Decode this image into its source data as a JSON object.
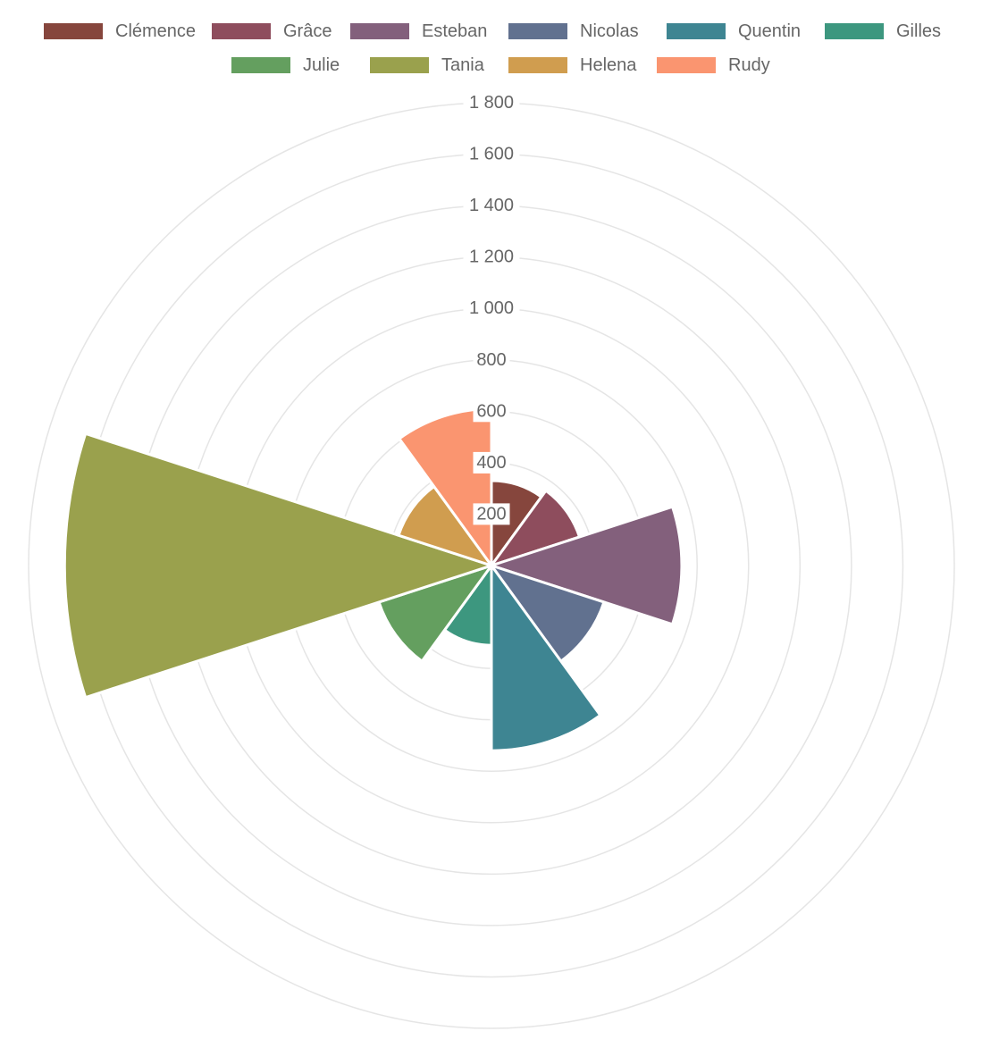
{
  "chart_data": {
    "type": "polarArea",
    "title": "",
    "categories": [
      "Clémence",
      "Grâce",
      "Esteban",
      "Nicolas",
      "Quentin",
      "Gilles",
      "Julie",
      "Tania",
      "Helena",
      "Rudy"
    ],
    "values": [
      330,
      360,
      740,
      460,
      720,
      310,
      460,
      1660,
      380,
      610
    ],
    "colors": [
      "#86463d",
      "#8e4d5d",
      "#83607c",
      "#61718f",
      "#3e8592",
      "#3d977f",
      "#649f5f",
      "#9aa14d",
      "#d09d4f",
      "#fa9570"
    ],
    "rlim": [
      0,
      1800
    ],
    "ticks": [
      200,
      400,
      600,
      800,
      1000,
      1200,
      1400,
      1600,
      1800
    ],
    "tick_labels": [
      "200",
      "400",
      "600",
      "800",
      "1 000",
      "1 200",
      "1 400",
      "1 600",
      "1 800"
    ],
    "legend": "top",
    "grid": true
  }
}
